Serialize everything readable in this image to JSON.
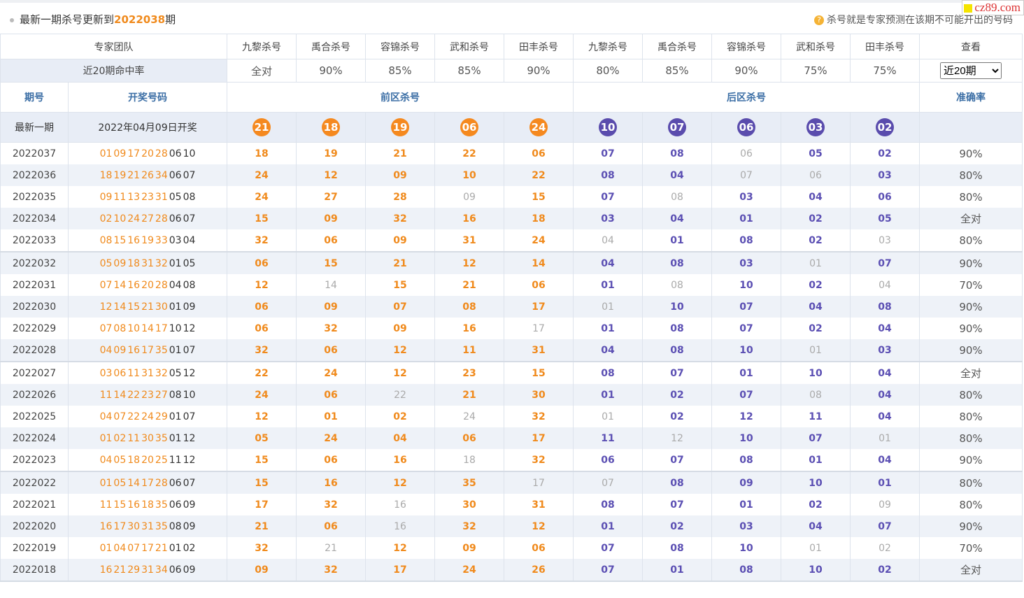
{
  "header": {
    "prefix": "最新一期杀号更新到",
    "issue": "2022038",
    "suffix": "期",
    "note": "杀号就是专家预测在该期不可能开出的号码",
    "watermark": "cz89.com"
  },
  "experts": {
    "label": "专家团队",
    "names": [
      "九黎杀号",
      "禹合杀号",
      "容锦杀号",
      "武和杀号",
      "田丰杀号",
      "九黎杀号",
      "禹合杀号",
      "容锦杀号",
      "武和杀号",
      "田丰杀号"
    ],
    "view": "查看"
  },
  "hit_rate": {
    "label": "近20期命中率",
    "values": [
      "全对",
      "90%",
      "85%",
      "85%",
      "90%",
      "80%",
      "85%",
      "90%",
      "75%",
      "75%"
    ],
    "select": "近20期"
  },
  "columns": {
    "issue": "期号",
    "draw": "开奖号码",
    "front": "前区杀号",
    "back": "后区杀号",
    "accuracy": "准确率"
  },
  "latest": {
    "label": "最新一期",
    "date": "2022年04月09日开奖",
    "front": [
      "21",
      "18",
      "19",
      "06",
      "24"
    ],
    "back": [
      "10",
      "07",
      "06",
      "03",
      "02"
    ]
  },
  "rows": [
    {
      "issue": "2022037",
      "draw_front": [
        "01",
        "09",
        "17",
        "20",
        "28"
      ],
      "draw_back": [
        "06",
        "10"
      ],
      "kill_front": [
        "18",
        "19",
        "21",
        "22",
        "06"
      ],
      "kill_back": [
        "07",
        "08",
        "06",
        "05",
        "02"
      ],
      "accuracy": "90%"
    },
    {
      "issue": "2022036",
      "draw_front": [
        "18",
        "19",
        "21",
        "26",
        "34"
      ],
      "draw_back": [
        "06",
        "07"
      ],
      "kill_front": [
        "24",
        "12",
        "09",
        "10",
        "22"
      ],
      "kill_back": [
        "08",
        "04",
        "07",
        "06",
        "03"
      ],
      "accuracy": "80%"
    },
    {
      "issue": "2022035",
      "draw_front": [
        "09",
        "11",
        "13",
        "23",
        "31"
      ],
      "draw_back": [
        "05",
        "08"
      ],
      "kill_front": [
        "24",
        "27",
        "28",
        "09",
        "15"
      ],
      "kill_back": [
        "07",
        "08",
        "03",
        "04",
        "06"
      ],
      "accuracy": "80%"
    },
    {
      "issue": "2022034",
      "draw_front": [
        "02",
        "10",
        "24",
        "27",
        "28"
      ],
      "draw_back": [
        "06",
        "07"
      ],
      "kill_front": [
        "15",
        "09",
        "32",
        "16",
        "18"
      ],
      "kill_back": [
        "03",
        "04",
        "01",
        "02",
        "05"
      ],
      "accuracy": "全对"
    },
    {
      "issue": "2022033",
      "draw_front": [
        "08",
        "15",
        "16",
        "19",
        "33"
      ],
      "draw_back": [
        "03",
        "04"
      ],
      "kill_front": [
        "32",
        "06",
        "09",
        "31",
        "24"
      ],
      "kill_back": [
        "04",
        "01",
        "08",
        "02",
        "03"
      ],
      "accuracy": "80%"
    },
    {
      "issue": "2022032",
      "draw_front": [
        "05",
        "09",
        "18",
        "31",
        "32"
      ],
      "draw_back": [
        "01",
        "05"
      ],
      "kill_front": [
        "06",
        "15",
        "21",
        "12",
        "14"
      ],
      "kill_back": [
        "04",
        "08",
        "03",
        "01",
        "07"
      ],
      "accuracy": "90%"
    },
    {
      "issue": "2022031",
      "draw_front": [
        "07",
        "14",
        "16",
        "20",
        "28"
      ],
      "draw_back": [
        "04",
        "08"
      ],
      "kill_front": [
        "12",
        "14",
        "15",
        "21",
        "06"
      ],
      "kill_back": [
        "01",
        "08",
        "10",
        "02",
        "04"
      ],
      "accuracy": "70%"
    },
    {
      "issue": "2022030",
      "draw_front": [
        "12",
        "14",
        "15",
        "21",
        "30"
      ],
      "draw_back": [
        "01",
        "09"
      ],
      "kill_front": [
        "06",
        "09",
        "07",
        "08",
        "17"
      ],
      "kill_back": [
        "01",
        "10",
        "07",
        "04",
        "08"
      ],
      "accuracy": "90%"
    },
    {
      "issue": "2022029",
      "draw_front": [
        "07",
        "08",
        "10",
        "14",
        "17"
      ],
      "draw_back": [
        "10",
        "12"
      ],
      "kill_front": [
        "06",
        "32",
        "09",
        "16",
        "17"
      ],
      "kill_back": [
        "01",
        "08",
        "07",
        "02",
        "04"
      ],
      "accuracy": "90%"
    },
    {
      "issue": "2022028",
      "draw_front": [
        "04",
        "09",
        "16",
        "17",
        "35"
      ],
      "draw_back": [
        "01",
        "07"
      ],
      "kill_front": [
        "32",
        "06",
        "12",
        "11",
        "31"
      ],
      "kill_back": [
        "04",
        "08",
        "10",
        "01",
        "03"
      ],
      "accuracy": "90%"
    },
    {
      "issue": "2022027",
      "draw_front": [
        "03",
        "06",
        "11",
        "31",
        "32"
      ],
      "draw_back": [
        "05",
        "12"
      ],
      "kill_front": [
        "22",
        "24",
        "12",
        "23",
        "15"
      ],
      "kill_back": [
        "08",
        "07",
        "01",
        "10",
        "04"
      ],
      "accuracy": "全对"
    },
    {
      "issue": "2022026",
      "draw_front": [
        "11",
        "14",
        "22",
        "23",
        "27"
      ],
      "draw_back": [
        "08",
        "10"
      ],
      "kill_front": [
        "24",
        "06",
        "22",
        "21",
        "30"
      ],
      "kill_back": [
        "01",
        "02",
        "07",
        "08",
        "04"
      ],
      "accuracy": "80%"
    },
    {
      "issue": "2022025",
      "draw_front": [
        "04",
        "07",
        "22",
        "24",
        "29"
      ],
      "draw_back": [
        "01",
        "07"
      ],
      "kill_front": [
        "12",
        "01",
        "02",
        "24",
        "32"
      ],
      "kill_back": [
        "01",
        "02",
        "12",
        "11",
        "04"
      ],
      "accuracy": "80%"
    },
    {
      "issue": "2022024",
      "draw_front": [
        "01",
        "02",
        "11",
        "30",
        "35"
      ],
      "draw_back": [
        "01",
        "12"
      ],
      "kill_front": [
        "05",
        "24",
        "04",
        "06",
        "17"
      ],
      "kill_back": [
        "11",
        "12",
        "10",
        "07",
        "01"
      ],
      "accuracy": "80%"
    },
    {
      "issue": "2022023",
      "draw_front": [
        "04",
        "05",
        "18",
        "20",
        "25"
      ],
      "draw_back": [
        "11",
        "12"
      ],
      "kill_front": [
        "15",
        "06",
        "16",
        "18",
        "32"
      ],
      "kill_back": [
        "06",
        "07",
        "08",
        "01",
        "04"
      ],
      "accuracy": "90%"
    },
    {
      "issue": "2022022",
      "draw_front": [
        "01",
        "05",
        "14",
        "17",
        "28"
      ],
      "draw_back": [
        "06",
        "07"
      ],
      "kill_front": [
        "15",
        "16",
        "12",
        "35",
        "17"
      ],
      "kill_back": [
        "07",
        "08",
        "09",
        "10",
        "01"
      ],
      "accuracy": "80%"
    },
    {
      "issue": "2022021",
      "draw_front": [
        "11",
        "15",
        "16",
        "18",
        "35"
      ],
      "draw_back": [
        "06",
        "09"
      ],
      "kill_front": [
        "17",
        "32",
        "16",
        "30",
        "31"
      ],
      "kill_back": [
        "08",
        "07",
        "01",
        "02",
        "09"
      ],
      "accuracy": "80%"
    },
    {
      "issue": "2022020",
      "draw_front": [
        "16",
        "17",
        "30",
        "31",
        "35"
      ],
      "draw_back": [
        "08",
        "09"
      ],
      "kill_front": [
        "21",
        "06",
        "16",
        "32",
        "12"
      ],
      "kill_back": [
        "01",
        "02",
        "03",
        "04",
        "07"
      ],
      "accuracy": "90%"
    },
    {
      "issue": "2022019",
      "draw_front": [
        "01",
        "04",
        "07",
        "17",
        "21"
      ],
      "draw_back": [
        "01",
        "02"
      ],
      "kill_front": [
        "32",
        "21",
        "12",
        "09",
        "06"
      ],
      "kill_back": [
        "07",
        "08",
        "10",
        "01",
        "02"
      ],
      "accuracy": "70%"
    },
    {
      "issue": "2022018",
      "draw_front": [
        "16",
        "21",
        "29",
        "31",
        "34"
      ],
      "draw_back": [
        "06",
        "09"
      ],
      "kill_front": [
        "09",
        "32",
        "17",
        "24",
        "26"
      ],
      "kill_back": [
        "07",
        "01",
        "08",
        "10",
        "02"
      ],
      "accuracy": "全对"
    }
  ]
}
